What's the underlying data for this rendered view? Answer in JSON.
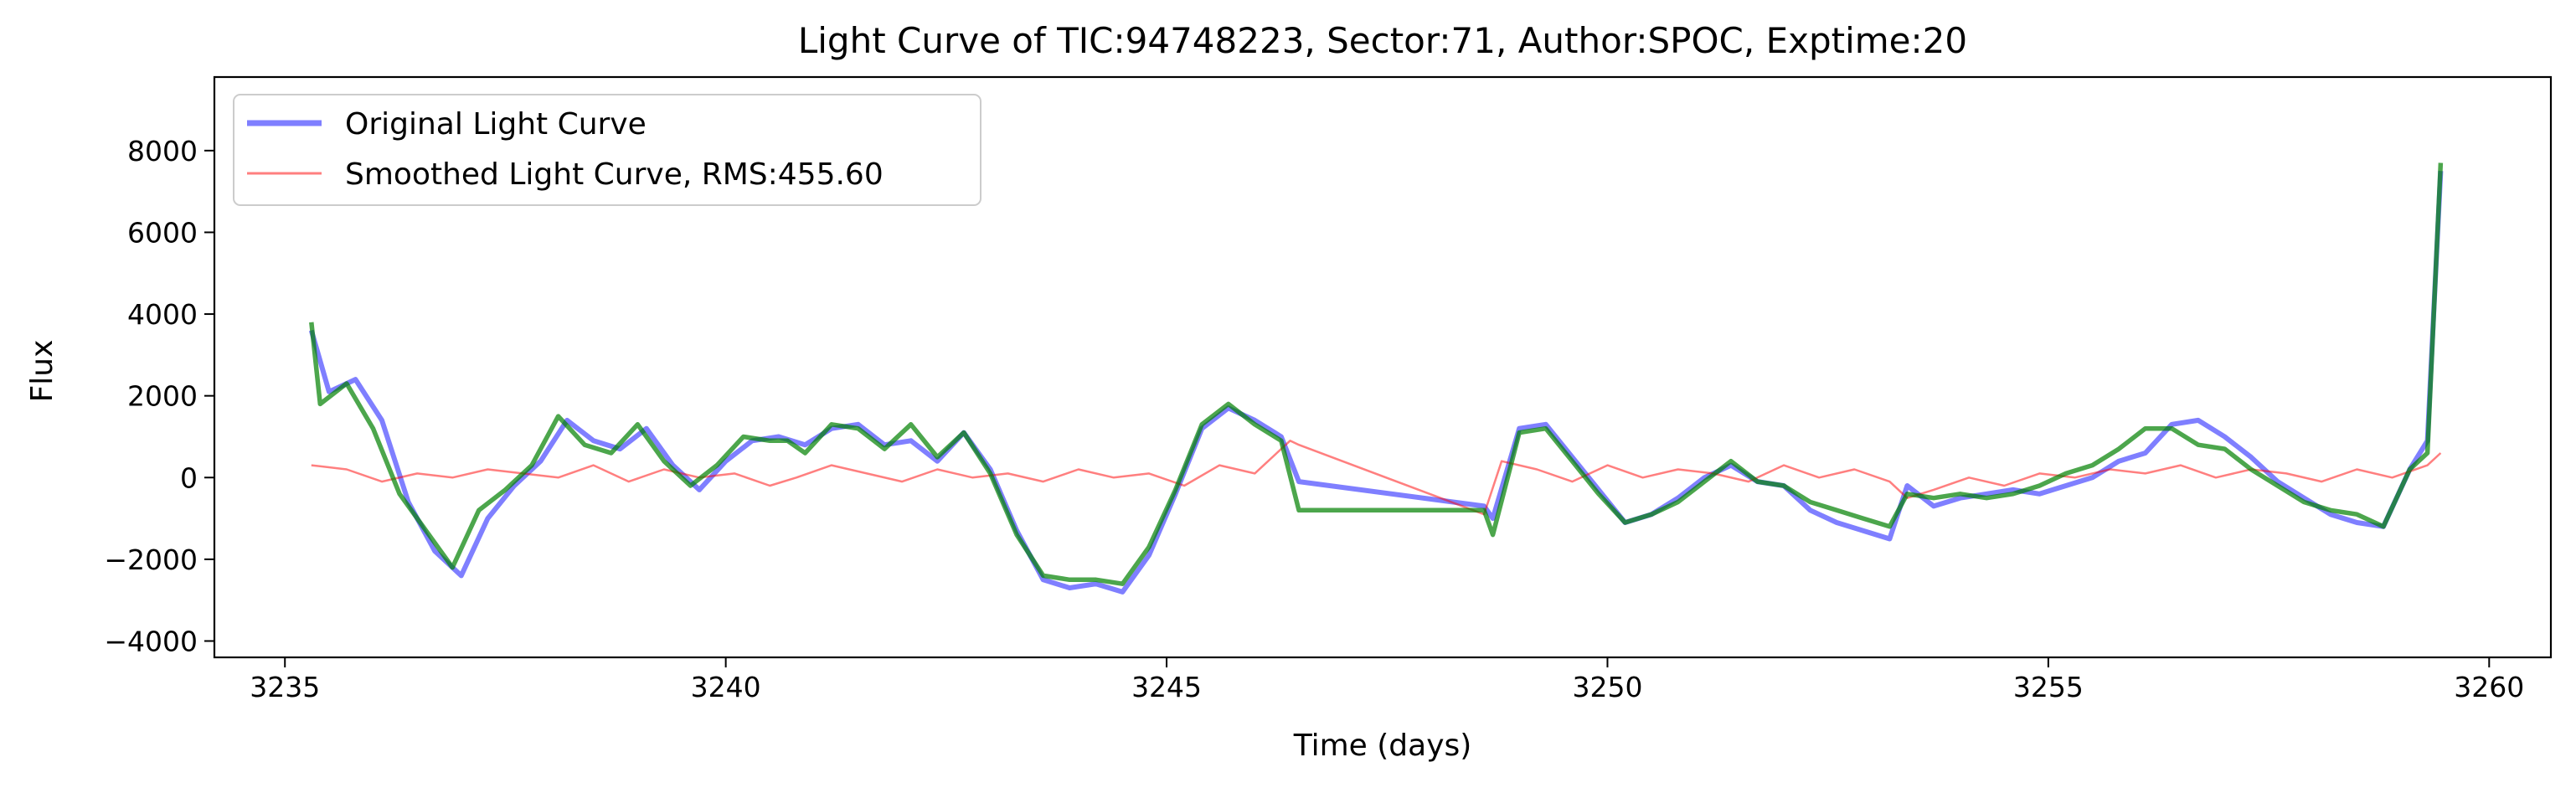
{
  "chart_data": {
    "type": "line",
    "title": "Light Curve of TIC:94748223, Sector:71, Author:SPOC, Exptime:20",
    "xlabel": "Time (days)",
    "ylabel": "Flux",
    "xlim": [
      3234.2,
      3260.7
    ],
    "ylim": [
      -4400,
      9800
    ],
    "xticks": [
      3235,
      3240,
      3245,
      3250,
      3255,
      3260
    ],
    "yticks": [
      -4000,
      -2000,
      0,
      2000,
      4000,
      6000,
      8000
    ],
    "grid": false,
    "legend": {
      "placement": "upper-left"
    },
    "series": [
      {
        "name": "Original Light Curve",
        "color": "#0000ff",
        "alpha": 0.5,
        "style": "thick",
        "x": [
          3235.3,
          3235.5,
          3235.8,
          3236.1,
          3236.4,
          3236.7,
          3237.0,
          3237.3,
          3237.6,
          3237.9,
          3238.2,
          3238.5,
          3238.8,
          3239.1,
          3239.4,
          3239.7,
          3240.0,
          3240.3,
          3240.6,
          3240.9,
          3241.2,
          3241.5,
          3241.8,
          3242.1,
          3242.4,
          3242.7,
          3243.0,
          3243.3,
          3243.6,
          3243.9,
          3244.2,
          3244.5,
          3244.8,
          3245.1,
          3245.4,
          3245.7,
          3246.0,
          3246.3,
          3246.5,
          3248.6,
          3248.7,
          3249.0,
          3249.3,
          3249.6,
          3249.9,
          3250.2,
          3250.5,
          3250.8,
          3251.1,
          3251.4,
          3251.7,
          3252.0,
          3252.3,
          3252.6,
          3252.9,
          3253.2,
          3253.4,
          3253.7,
          3254.0,
          3254.3,
          3254.6,
          3254.9,
          3255.2,
          3255.5,
          3255.8,
          3256.1,
          3256.4,
          3256.7,
          3257.0,
          3257.3,
          3257.6,
          3257.9,
          3258.2,
          3258.5,
          3258.8,
          3259.1,
          3259.3,
          3259.45
        ],
        "y": [
          3600,
          2100,
          2400,
          1400,
          -600,
          -1800,
          -2400,
          -1000,
          -200,
          400,
          1400,
          900,
          700,
          1200,
          300,
          -300,
          400,
          900,
          1000,
          800,
          1200,
          1300,
          800,
          900,
          400,
          1100,
          200,
          -1300,
          -2500,
          -2700,
          -2600,
          -2800,
          -1900,
          -400,
          1200,
          1700,
          1400,
          1000,
          -100,
          -700,
          -1000,
          1200,
          1300,
          500,
          -300,
          -1100,
          -900,
          -500,
          0,
          300,
          -100,
          -200,
          -800,
          -1100,
          -1300,
          -1500,
          -200,
          -700,
          -500,
          -400,
          -300,
          -400,
          -200,
          0,
          400,
          600,
          1300,
          1400,
          1000,
          500,
          -100,
          -500,
          -900,
          -1100,
          -1200,
          200,
          900,
          7500
        ]
      },
      {
        "name": "Smoothed Light Curve, RMS:455.60",
        "color": "#ff0000",
        "alpha": 0.5,
        "style": "thin",
        "x": [
          3235.3,
          3235.7,
          3236.1,
          3236.5,
          3236.9,
          3237.3,
          3237.7,
          3238.1,
          3238.5,
          3238.9,
          3239.3,
          3239.7,
          3240.1,
          3240.5,
          3240.8,
          3241.2,
          3241.6,
          3242.0,
          3242.4,
          3242.8,
          3243.2,
          3243.6,
          3244.0,
          3244.4,
          3244.8,
          3245.2,
          3245.6,
          3246.0,
          3246.4,
          3246.5,
          3248.6,
          3248.8,
          3249.2,
          3249.6,
          3250.0,
          3250.4,
          3250.8,
          3251.2,
          3251.6,
          3252.0,
          3252.4,
          3252.8,
          3253.2,
          3253.4,
          3253.7,
          3254.1,
          3254.5,
          3254.9,
          3255.3,
          3255.7,
          3256.1,
          3256.5,
          3256.9,
          3257.3,
          3257.7,
          3258.1,
          3258.5,
          3258.9,
          3259.3,
          3259.45
        ],
        "y": [
          300,
          200,
          -100,
          100,
          0,
          200,
          100,
          0,
          300,
          -100,
          200,
          0,
          100,
          -200,
          0,
          300,
          100,
          -100,
          200,
          0,
          100,
          -100,
          200,
          0,
          100,
          -200,
          300,
          100,
          900,
          800,
          -900,
          400,
          200,
          -100,
          300,
          0,
          200,
          100,
          -100,
          300,
          0,
          200,
          -100,
          -500,
          -300,
          0,
          -200,
          100,
          0,
          200,
          100,
          300,
          0,
          200,
          100,
          -100,
          200,
          0,
          300,
          600
        ]
      },
      {
        "name": "",
        "color": "#008000",
        "alpha": 0.7,
        "style": "medium",
        "x": [
          3235.3,
          3235.4,
          3235.7,
          3236.0,
          3236.3,
          3236.6,
          3236.9,
          3237.2,
          3237.5,
          3237.8,
          3238.1,
          3238.4,
          3238.7,
          3239.0,
          3239.3,
          3239.6,
          3239.9,
          3240.2,
          3240.5,
          3240.7,
          3240.9,
          3241.2,
          3241.5,
          3241.8,
          3242.1,
          3242.4,
          3242.7,
          3243.0,
          3243.3,
          3243.6,
          3243.9,
          3244.2,
          3244.5,
          3244.8,
          3245.1,
          3245.4,
          3245.7,
          3246.0,
          3246.3,
          3246.5,
          3248.6,
          3248.7,
          3249.0,
          3249.3,
          3249.6,
          3249.9,
          3250.2,
          3250.5,
          3250.8,
          3251.1,
          3251.4,
          3251.7,
          3252.0,
          3252.3,
          3252.6,
          3252.9,
          3253.2,
          3253.4,
          3253.7,
          3254.0,
          3254.3,
          3254.6,
          3254.9,
          3255.2,
          3255.5,
          3255.8,
          3256.1,
          3256.4,
          3256.7,
          3257.0,
          3257.3,
          3257.6,
          3257.9,
          3258.2,
          3258.5,
          3258.8,
          3259.1,
          3259.3,
          3259.45
        ],
        "y": [
          3800,
          1800,
          2300,
          1200,
          -400,
          -1300,
          -2200,
          -800,
          -300,
          300,
          1500,
          800,
          600,
          1300,
          400,
          -200,
          300,
          1000,
          900,
          900,
          600,
          1300,
          1200,
          700,
          1300,
          500,
          1100,
          100,
          -1400,
          -2400,
          -2500,
          -2500,
          -2600,
          -1700,
          -300,
          1300,
          1800,
          1300,
          900,
          -800,
          -800,
          -1400,
          1100,
          1200,
          400,
          -400,
          -1100,
          -900,
          -600,
          -100,
          400,
          -100,
          -200,
          -600,
          -800,
          -1000,
          -1200,
          -400,
          -500,
          -400,
          -500,
          -400,
          -200,
          100,
          300,
          700,
          1200,
          1200,
          800,
          700,
          200,
          -200,
          -600,
          -800,
          -900,
          -1200,
          200,
          600,
          7700
        ]
      }
    ]
  }
}
